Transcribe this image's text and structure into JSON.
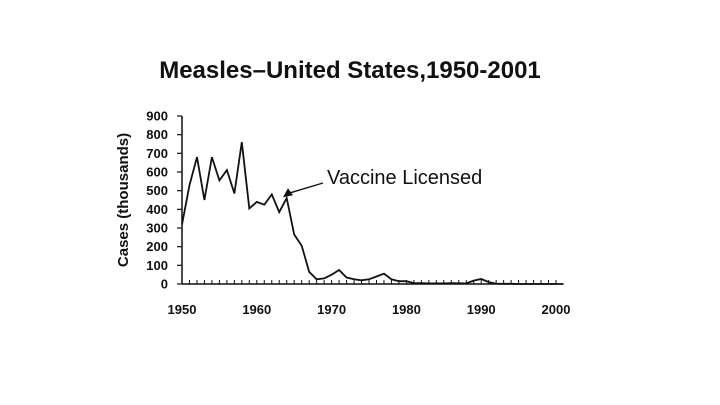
{
  "chart_data": {
    "type": "line",
    "title": "Measles–United States,1950-2001",
    "xlabel": "",
    "ylabel": "Cases (thousands)",
    "xlim": [
      1950,
      2001
    ],
    "ylim": [
      0,
      900
    ],
    "x_ticks": [
      1950,
      1960,
      1970,
      1980,
      1990,
      2000
    ],
    "y_ticks": [
      0,
      100,
      200,
      300,
      400,
      500,
      600,
      700,
      800,
      900
    ],
    "grid": false,
    "series": [
      {
        "x": [
          1950,
          1951,
          1952,
          1953,
          1954,
          1955,
          1956,
          1957,
          1958,
          1959,
          1960,
          1961,
          1962,
          1963,
          1964,
          1965,
          1966,
          1967,
          1968,
          1969,
          1970,
          1971,
          1972,
          1973,
          1974,
          1975,
          1976,
          1977,
          1978,
          1979,
          1980,
          1981,
          1982,
          1983,
          1984,
          1985,
          1986,
          1987,
          1988,
          1989,
          1990,
          1991,
          1992,
          1993,
          1994,
          1995,
          1996,
          1997,
          1998,
          1999,
          2000,
          2001
        ],
        "y": [
          319,
          530,
          680,
          450,
          680,
          555,
          610,
          485,
          760,
          405,
          440,
          425,
          480,
          385,
          460,
          265,
          205,
          65,
          25,
          30,
          50,
          75,
          35,
          25,
          20,
          25,
          40,
          55,
          25,
          15,
          15,
          5,
          5,
          3,
          3,
          3,
          5,
          4,
          3,
          18,
          27,
          10,
          2,
          1,
          1,
          0,
          0,
          0,
          0,
          0,
          0,
          0
        ]
      }
    ],
    "annotations": [
      {
        "text": "Vaccine Licensed",
        "x": 1963.5,
        "y": 465
      }
    ],
    "color": "#111111"
  }
}
